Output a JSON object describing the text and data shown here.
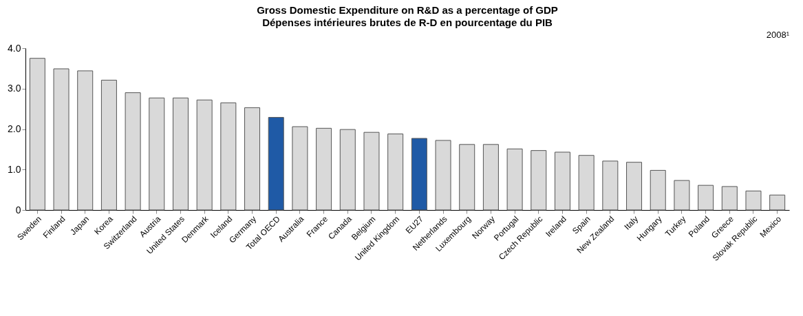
{
  "chart_data": {
    "type": "bar",
    "title": "Gross Domestic Expenditure on R&D as a percentage of GDP",
    "subtitle": "Dépenses intérieures brutes de R-D en pourcentage du PIB",
    "annotations": [
      "2008¹"
    ],
    "categories": [
      "Sweden",
      "Finland",
      "Japan",
      "Korea",
      "Switzerland",
      "Austria",
      "United States",
      "Denmark",
      "Iceland",
      "Germany",
      "Total OECD",
      "Australia",
      "France",
      "Canada",
      "Belgium",
      "United Kingdom",
      "EU27",
      "Netherlands",
      "Luxembourg",
      "Norway",
      "Portugal",
      "Czech Republic",
      "Ireland",
      "Spain",
      "New Zealand",
      "Italy",
      "Hungary",
      "Turkey",
      "Poland",
      "Greece",
      "Slovak Republic",
      "Mexico"
    ],
    "values": [
      3.75,
      3.49,
      3.44,
      3.21,
      2.9,
      2.77,
      2.77,
      2.72,
      2.65,
      2.53,
      2.29,
      2.06,
      2.02,
      1.99,
      1.92,
      1.88,
      1.77,
      1.72,
      1.62,
      1.62,
      1.51,
      1.47,
      1.43,
      1.35,
      1.21,
      1.18,
      0.98,
      0.73,
      0.61,
      0.58,
      0.47,
      0.37
    ],
    "colors": [
      "#d9d9d9",
      "#d9d9d9",
      "#d9d9d9",
      "#d9d9d9",
      "#d9d9d9",
      "#d9d9d9",
      "#d9d9d9",
      "#d9d9d9",
      "#d9d9d9",
      "#d9d9d9",
      "#1f5aa6",
      "#d9d9d9",
      "#d9d9d9",
      "#d9d9d9",
      "#d9d9d9",
      "#d9d9d9",
      "#1f5aa6",
      "#d9d9d9",
      "#d9d9d9",
      "#d9d9d9",
      "#d9d9d9",
      "#d9d9d9",
      "#d9d9d9",
      "#d9d9d9",
      "#d9d9d9",
      "#d9d9d9",
      "#d9d9d9",
      "#d9d9d9",
      "#d9d9d9",
      "#d9d9d9",
      "#d9d9d9",
      "#d9d9d9"
    ],
    "ylim": [
      0,
      4
    ],
    "yticks": [
      0,
      {
        "value": 1,
        "label": "1.0"
      },
      {
        "value": 2,
        "label": "2.0"
      },
      {
        "value": 3,
        "label": "3.0"
      },
      {
        "value": 4,
        "label": "4.0"
      }
    ],
    "grid": false
  }
}
